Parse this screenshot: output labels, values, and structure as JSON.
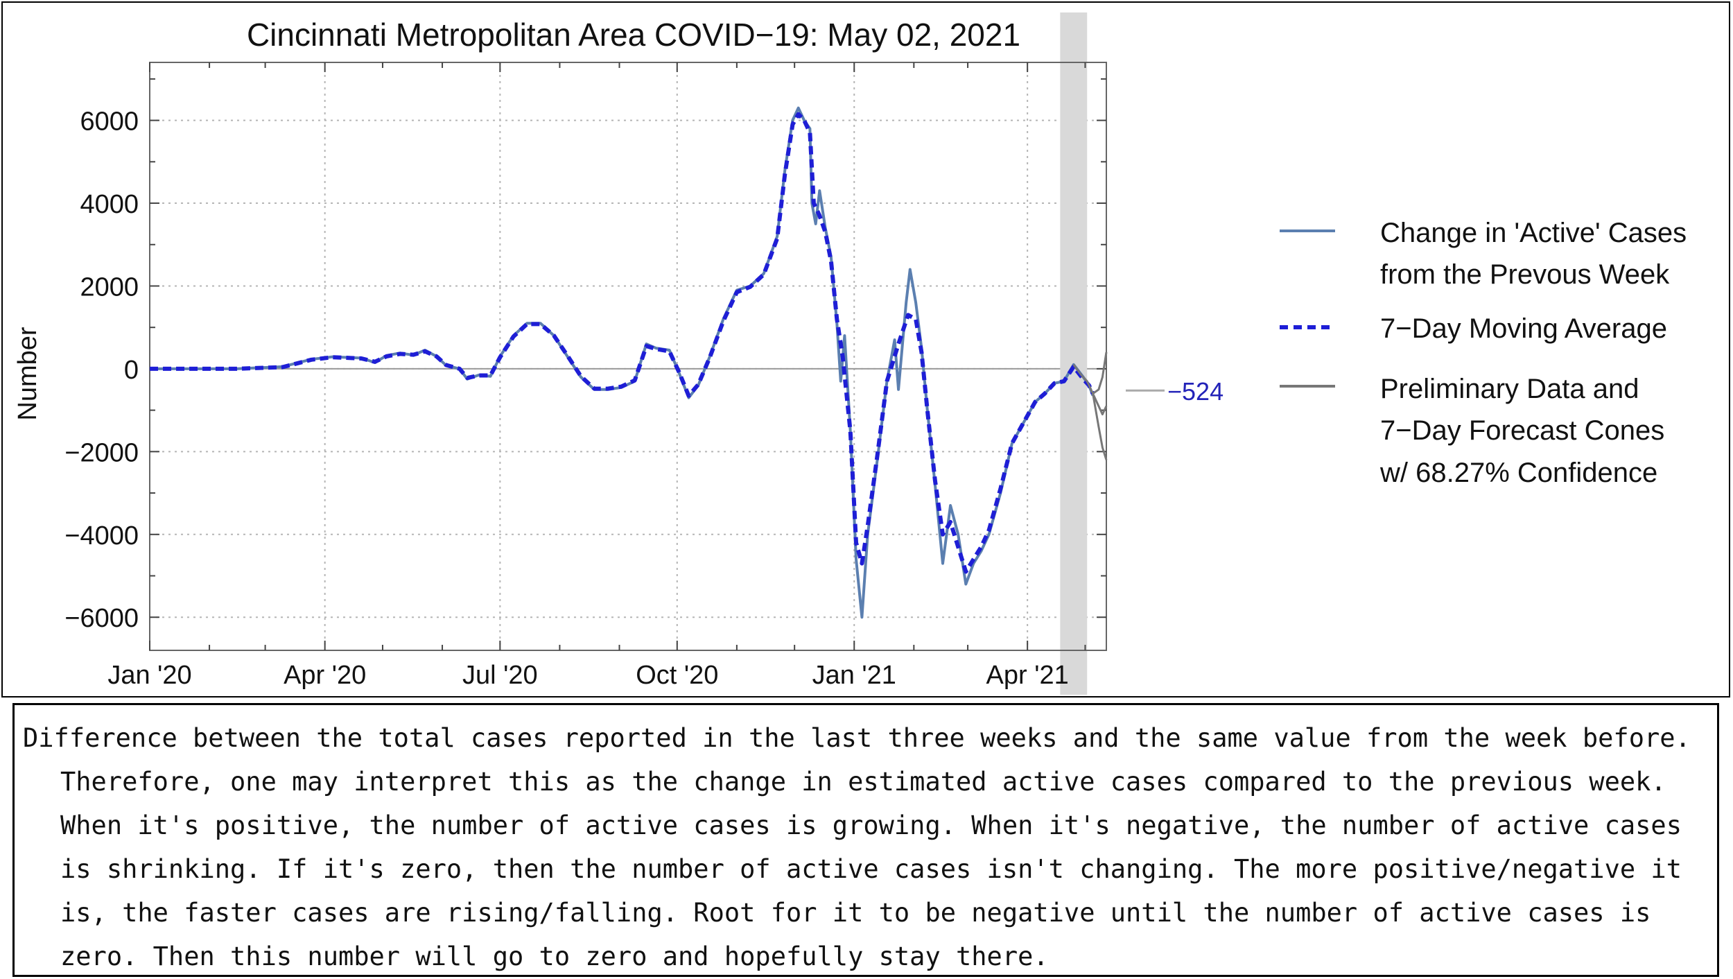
{
  "chart_data": {
    "type": "line",
    "title": "Cincinnati Metropolitan Area COVID−19: May 02, 2021",
    "ylabel": "Number",
    "xlabel": "",
    "ylim": [
      -6800,
      7400
    ],
    "xlim": [
      "2020-01-01",
      "2021-05-12"
    ],
    "grid": true,
    "legend_position": "right",
    "x_ticks": [
      {
        "date": "2020-01-01",
        "label": "Jan '20"
      },
      {
        "date": "2020-04-01",
        "label": "Apr '20"
      },
      {
        "date": "2020-07-01",
        "label": "Jul '20"
      },
      {
        "date": "2020-10-01",
        "label": "Oct '20"
      },
      {
        "date": "2021-01-01",
        "label": "Jan '21"
      },
      {
        "date": "2021-04-01",
        "label": "Apr '21"
      }
    ],
    "y_ticks": [
      {
        "value": 6000,
        "label": "6000"
      },
      {
        "value": 4000,
        "label": "4000"
      },
      {
        "value": 2000,
        "label": "2000"
      },
      {
        "value": 0,
        "label": "0"
      },
      {
        "value": -2000,
        "label": "−2000"
      },
      {
        "value": -4000,
        "label": "−4000"
      },
      {
        "value": -6000,
        "label": "−6000"
      }
    ],
    "series": [
      {
        "name": "Change in 'Active' Cases from the Prevous Week",
        "color": "#5b7fb0",
        "style": "solid",
        "points": [
          [
            "2020-01-01",
            0
          ],
          [
            "2020-02-15",
            0
          ],
          [
            "2020-03-10",
            50
          ],
          [
            "2020-03-25",
            230
          ],
          [
            "2020-04-05",
            290
          ],
          [
            "2020-04-20",
            260
          ],
          [
            "2020-04-27",
            150
          ],
          [
            "2020-05-03",
            320
          ],
          [
            "2020-05-10",
            380
          ],
          [
            "2020-05-17",
            330
          ],
          [
            "2020-05-23",
            450
          ],
          [
            "2020-05-29",
            300
          ],
          [
            "2020-06-03",
            80
          ],
          [
            "2020-06-10",
            0
          ],
          [
            "2020-06-14",
            -250
          ],
          [
            "2020-06-20",
            -150
          ],
          [
            "2020-06-26",
            -180
          ],
          [
            "2020-07-01",
            300
          ],
          [
            "2020-07-08",
            800
          ],
          [
            "2020-07-15",
            1100
          ],
          [
            "2020-07-22",
            1100
          ],
          [
            "2020-07-29",
            800
          ],
          [
            "2020-08-05",
            300
          ],
          [
            "2020-08-12",
            -200
          ],
          [
            "2020-08-19",
            -500
          ],
          [
            "2020-08-26",
            -500
          ],
          [
            "2020-09-02",
            -450
          ],
          [
            "2020-09-09",
            -300
          ],
          [
            "2020-09-15",
            600
          ],
          [
            "2020-09-20",
            500
          ],
          [
            "2020-09-27",
            450
          ],
          [
            "2020-10-02",
            -100
          ],
          [
            "2020-10-07",
            -700
          ],
          [
            "2020-10-12",
            -400
          ],
          [
            "2020-10-18",
            300
          ],
          [
            "2020-10-25",
            1200
          ],
          [
            "2020-11-01",
            1900
          ],
          [
            "2020-11-08",
            2000
          ],
          [
            "2020-11-15",
            2300
          ],
          [
            "2020-11-22",
            3200
          ],
          [
            "2020-11-26",
            4800
          ],
          [
            "2020-11-30",
            6000
          ],
          [
            "2020-12-03",
            6300
          ],
          [
            "2020-12-06",
            6000
          ],
          [
            "2020-12-09",
            5800
          ],
          [
            "2020-12-10",
            4000
          ],
          [
            "2020-12-12",
            3500
          ],
          [
            "2020-12-14",
            4300
          ],
          [
            "2020-12-17",
            3400
          ],
          [
            "2020-12-20",
            2700
          ],
          [
            "2020-12-23",
            1100
          ],
          [
            "2020-12-25",
            -300
          ],
          [
            "2020-12-27",
            800
          ],
          [
            "2020-12-30",
            -1500
          ],
          [
            "2021-01-02",
            -4600
          ],
          [
            "2021-01-05",
            -6000
          ],
          [
            "2021-01-08",
            -4000
          ],
          [
            "2021-01-13",
            -2200
          ],
          [
            "2021-01-18",
            -300
          ],
          [
            "2021-01-22",
            700
          ],
          [
            "2021-01-24",
            -500
          ],
          [
            "2021-01-28",
            1600
          ],
          [
            "2021-01-30",
            2400
          ],
          [
            "2021-02-02",
            1600
          ],
          [
            "2021-02-05",
            500
          ],
          [
            "2021-02-08",
            -1000
          ],
          [
            "2021-02-12",
            -2800
          ],
          [
            "2021-02-16",
            -4700
          ],
          [
            "2021-02-20",
            -3300
          ],
          [
            "2021-02-24",
            -4000
          ],
          [
            "2021-02-28",
            -5200
          ],
          [
            "2021-03-04",
            -4700
          ],
          [
            "2021-03-08",
            -4400
          ],
          [
            "2021-03-12",
            -4000
          ],
          [
            "2021-03-18",
            -3000
          ],
          [
            "2021-03-24",
            -1800
          ],
          [
            "2021-03-30",
            -1300
          ],
          [
            "2021-04-05",
            -800
          ],
          [
            "2021-04-10",
            -600
          ],
          [
            "2021-04-15",
            -350
          ],
          [
            "2021-04-20",
            -300
          ],
          [
            "2021-04-25",
            100
          ],
          [
            "2021-04-30",
            -200
          ],
          [
            "2021-05-03",
            -400
          ],
          [
            "2021-05-05",
            -650
          ]
        ]
      },
      {
        "name": "7−Day Moving Average",
        "color": "#1e1ed6",
        "style": "dashed",
        "points": [
          [
            "2020-01-01",
            0
          ],
          [
            "2020-02-15",
            0
          ],
          [
            "2020-03-10",
            40
          ],
          [
            "2020-03-25",
            220
          ],
          [
            "2020-04-05",
            280
          ],
          [
            "2020-04-20",
            250
          ],
          [
            "2020-04-27",
            170
          ],
          [
            "2020-05-03",
            300
          ],
          [
            "2020-05-10",
            360
          ],
          [
            "2020-05-17",
            340
          ],
          [
            "2020-05-23",
            420
          ],
          [
            "2020-05-29",
            300
          ],
          [
            "2020-06-03",
            90
          ],
          [
            "2020-06-10",
            0
          ],
          [
            "2020-06-14",
            -220
          ],
          [
            "2020-06-20",
            -160
          ],
          [
            "2020-06-26",
            -160
          ],
          [
            "2020-07-01",
            280
          ],
          [
            "2020-07-08",
            780
          ],
          [
            "2020-07-15",
            1080
          ],
          [
            "2020-07-22",
            1080
          ],
          [
            "2020-07-29",
            800
          ],
          [
            "2020-08-05",
            320
          ],
          [
            "2020-08-12",
            -180
          ],
          [
            "2020-08-19",
            -480
          ],
          [
            "2020-08-26",
            -480
          ],
          [
            "2020-09-02",
            -430
          ],
          [
            "2020-09-09",
            -280
          ],
          [
            "2020-09-15",
            550
          ],
          [
            "2020-09-20",
            480
          ],
          [
            "2020-09-27",
            420
          ],
          [
            "2020-10-02",
            -80
          ],
          [
            "2020-10-07",
            -650
          ],
          [
            "2020-10-12",
            -380
          ],
          [
            "2020-10-18",
            280
          ],
          [
            "2020-10-25",
            1150
          ],
          [
            "2020-11-01",
            1850
          ],
          [
            "2020-11-08",
            1980
          ],
          [
            "2020-11-15",
            2280
          ],
          [
            "2020-11-22",
            3150
          ],
          [
            "2020-11-26",
            4700
          ],
          [
            "2020-11-30",
            5900
          ],
          [
            "2020-12-03",
            6150
          ],
          [
            "2020-12-06",
            6000
          ],
          [
            "2020-12-09",
            5700
          ],
          [
            "2020-12-11",
            4000
          ],
          [
            "2020-12-14",
            3700
          ],
          [
            "2020-12-17",
            3300
          ],
          [
            "2020-12-20",
            2600
          ],
          [
            "2020-12-23",
            1200
          ],
          [
            "2020-12-26",
            300
          ],
          [
            "2020-12-30",
            -1500
          ],
          [
            "2021-01-02",
            -4200
          ],
          [
            "2021-01-05",
            -4700
          ],
          [
            "2021-01-08",
            -3800
          ],
          [
            "2021-01-13",
            -2100
          ],
          [
            "2021-01-18",
            -300
          ],
          [
            "2021-01-24",
            600
          ],
          [
            "2021-01-29",
            1300
          ],
          [
            "2021-02-02",
            1200
          ],
          [
            "2021-02-05",
            400
          ],
          [
            "2021-02-08",
            -1000
          ],
          [
            "2021-02-12",
            -2700
          ],
          [
            "2021-02-16",
            -4000
          ],
          [
            "2021-02-20",
            -3700
          ],
          [
            "2021-02-24",
            -4300
          ],
          [
            "2021-02-28",
            -4900
          ],
          [
            "2021-03-04",
            -4600
          ],
          [
            "2021-03-08",
            -4300
          ],
          [
            "2021-03-12",
            -3900
          ],
          [
            "2021-03-18",
            -2900
          ],
          [
            "2021-03-24",
            -1800
          ],
          [
            "2021-03-30",
            -1300
          ],
          [
            "2021-04-05",
            -800
          ],
          [
            "2021-04-10",
            -600
          ],
          [
            "2021-04-15",
            -350
          ],
          [
            "2021-04-20",
            -300
          ],
          [
            "2021-04-25",
            50
          ],
          [
            "2021-04-30",
            -250
          ],
          [
            "2021-05-03",
            -400
          ],
          [
            "2021-05-05",
            -600
          ]
        ]
      },
      {
        "name": "Preliminary Data and 7−Day Forecast Cones w/ 68.27% Confidence",
        "color": "#777777",
        "style": "solid",
        "lines": [
          [
            [
              "2021-04-25",
              100
            ],
            [
              "2021-04-29",
              -150
            ],
            [
              "2021-05-02",
              -300
            ],
            [
              "2021-05-05",
              -600
            ],
            [
              "2021-05-08",
              -900
            ],
            [
              "2021-05-10",
              -1100
            ],
            [
              "2021-05-12",
              -900
            ]
          ],
          [
            [
              "2021-05-05",
              -600
            ],
            [
              "2021-05-08",
              -500
            ],
            [
              "2021-05-10",
              -200
            ],
            [
              "2021-05-12",
              400
            ]
          ],
          [
            [
              "2021-05-05",
              -600
            ],
            [
              "2021-05-08",
              -1400
            ],
            [
              "2021-05-10",
              -1900
            ],
            [
              "2021-05-12",
              -2200
            ]
          ]
        ]
      }
    ],
    "shaded_region": {
      "from": "2021-04-18",
      "to": "2021-05-02",
      "color": "#d9d9d9"
    },
    "annotation": {
      "label": "−524",
      "value": -524,
      "color": "#2323b8"
    }
  },
  "legend": {
    "entry1_line1": "Change in 'Active' Cases",
    "entry1_line2": "from the Prevous Week",
    "entry2_line1": "7−Day Moving Average",
    "entry3_line1": "Preliminary Data and",
    "entry3_line2": "7−Day Forecast Cones",
    "entry3_line3": "w/ 68.27% Confidence"
  },
  "caption": {
    "text": "Difference between the total cases reported in the last three weeks and the same value from the week before. Therefore, one may interpret this as the change in estimated active cases compared to the previous week. When it's positive, the number of active cases is growing. When it's negative, the number of active cases is shrinking. If it's zero, then the number of active cases isn't changing. The more positive/negative it is, the faster cases are rising/falling. Root for it to be negative until the number of active cases is zero. Then this number will go to zero and hopefully stay there."
  }
}
